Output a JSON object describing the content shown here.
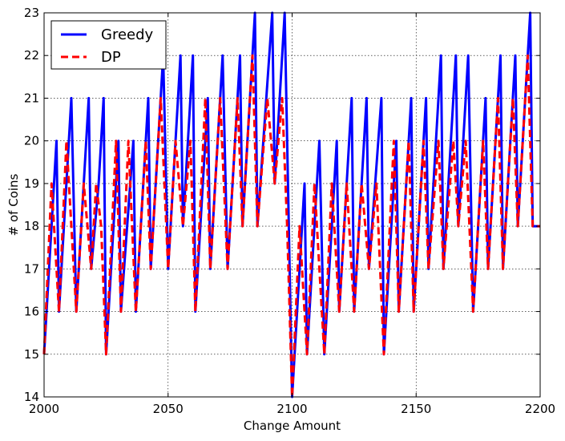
{
  "chart_data": {
    "type": "line",
    "title": "",
    "xlabel": "Change Amount",
    "ylabel": "# of Coins",
    "xlim": [
      2000,
      2200
    ],
    "ylim": [
      14,
      23
    ],
    "xticks": [
      2000,
      2050,
      2100,
      2150,
      2200
    ],
    "yticks": [
      14,
      15,
      16,
      17,
      18,
      19,
      20,
      21,
      22,
      23
    ],
    "grid": true,
    "legend": "top-left",
    "series": [
      {
        "name": "Greedy",
        "color": "#0000ff",
        "style": "solid",
        "points": [
          [
            2000,
            15
          ],
          [
            2005,
            20
          ],
          [
            2006,
            16
          ],
          [
            2011,
            21
          ],
          [
            2013,
            16
          ],
          [
            2018,
            21
          ],
          [
            2019,
            17
          ],
          [
            2022,
            19
          ],
          [
            2024,
            21
          ],
          [
            2025,
            15
          ],
          [
            2030,
            20
          ],
          [
            2031,
            16
          ],
          [
            2036,
            20
          ],
          [
            2037,
            16
          ],
          [
            2042,
            21
          ],
          [
            2043,
            17
          ],
          [
            2048,
            22
          ],
          [
            2050,
            17
          ],
          [
            2055,
            22
          ],
          [
            2056,
            18
          ],
          [
            2060,
            22
          ],
          [
            2061,
            16
          ],
          [
            2066,
            21
          ],
          [
            2067,
            17
          ],
          [
            2072,
            22
          ],
          [
            2074,
            17
          ],
          [
            2079,
            22
          ],
          [
            2080,
            18
          ],
          [
            2085,
            23
          ],
          [
            2086,
            18
          ],
          [
            2092,
            23
          ],
          [
            2093,
            19
          ],
          [
            2097,
            23
          ],
          [
            2099,
            17
          ],
          [
            2100,
            14
          ],
          [
            2105,
            19
          ],
          [
            2106,
            15
          ],
          [
            2111,
            20
          ],
          [
            2113,
            15
          ],
          [
            2118,
            20
          ],
          [
            2119,
            16
          ],
          [
            2124,
            21
          ],
          [
            2125,
            16
          ],
          [
            2130,
            21
          ],
          [
            2131,
            17
          ],
          [
            2136,
            21
          ],
          [
            2137,
            15
          ],
          [
            2142,
            20
          ],
          [
            2143,
            16
          ],
          [
            2148,
            21
          ],
          [
            2149,
            16
          ],
          [
            2154,
            21
          ],
          [
            2155,
            17
          ],
          [
            2160,
            22
          ],
          [
            2161,
            17
          ],
          [
            2166,
            22
          ],
          [
            2167,
            18
          ],
          [
            2171,
            22
          ],
          [
            2173,
            16
          ],
          [
            2178,
            21
          ],
          [
            2179,
            17
          ],
          [
            2184,
            22
          ],
          [
            2185,
            17
          ],
          [
            2190,
            22
          ],
          [
            2191,
            18
          ],
          [
            2196,
            23
          ],
          [
            2197,
            18
          ],
          [
            2200,
            18
          ]
        ]
      },
      {
        "name": "DP",
        "color": "#ff0000",
        "style": "dashed",
        "points": [
          [
            2000,
            15
          ],
          [
            2003,
            19
          ],
          [
            2006,
            16
          ],
          [
            2009,
            20
          ],
          [
            2013,
            16
          ],
          [
            2016,
            19
          ],
          [
            2019,
            17
          ],
          [
            2021,
            19
          ],
          [
            2023,
            18
          ],
          [
            2025,
            15
          ],
          [
            2029,
            20
          ],
          [
            2031,
            16
          ],
          [
            2034,
            20
          ],
          [
            2037,
            16
          ],
          [
            2041,
            20
          ],
          [
            2043,
            17
          ],
          [
            2047,
            21
          ],
          [
            2050,
            17
          ],
          [
            2053,
            20
          ],
          [
            2056,
            18
          ],
          [
            2059,
            20
          ],
          [
            2061,
            16
          ],
          [
            2065,
            21
          ],
          [
            2067,
            17
          ],
          [
            2071,
            21
          ],
          [
            2074,
            17
          ],
          [
            2078,
            21
          ],
          [
            2080,
            18
          ],
          [
            2084,
            22
          ],
          [
            2086,
            18
          ],
          [
            2090,
            21
          ],
          [
            2093,
            19
          ],
          [
            2096,
            21
          ],
          [
            2098,
            18
          ],
          [
            2100,
            14
          ],
          [
            2103,
            18
          ],
          [
            2106,
            15
          ],
          [
            2109,
            19
          ],
          [
            2113,
            15
          ],
          [
            2116,
            19
          ],
          [
            2119,
            16
          ],
          [
            2122,
            19
          ],
          [
            2125,
            16
          ],
          [
            2128,
            19
          ],
          [
            2131,
            17
          ],
          [
            2134,
            19
          ],
          [
            2137,
            15
          ],
          [
            2141,
            20
          ],
          [
            2143,
            16
          ],
          [
            2147,
            20
          ],
          [
            2149,
            16
          ],
          [
            2153,
            20
          ],
          [
            2155,
            17
          ],
          [
            2159,
            20
          ],
          [
            2161,
            17
          ],
          [
            2165,
            20
          ],
          [
            2167,
            18
          ],
          [
            2170,
            20
          ],
          [
            2173,
            16
          ],
          [
            2177,
            20
          ],
          [
            2179,
            17
          ],
          [
            2183,
            21
          ],
          [
            2185,
            17
          ],
          [
            2189,
            21
          ],
          [
            2191,
            18
          ],
          [
            2195,
            22
          ],
          [
            2197,
            18
          ],
          [
            2200,
            18
          ]
        ]
      }
    ]
  }
}
